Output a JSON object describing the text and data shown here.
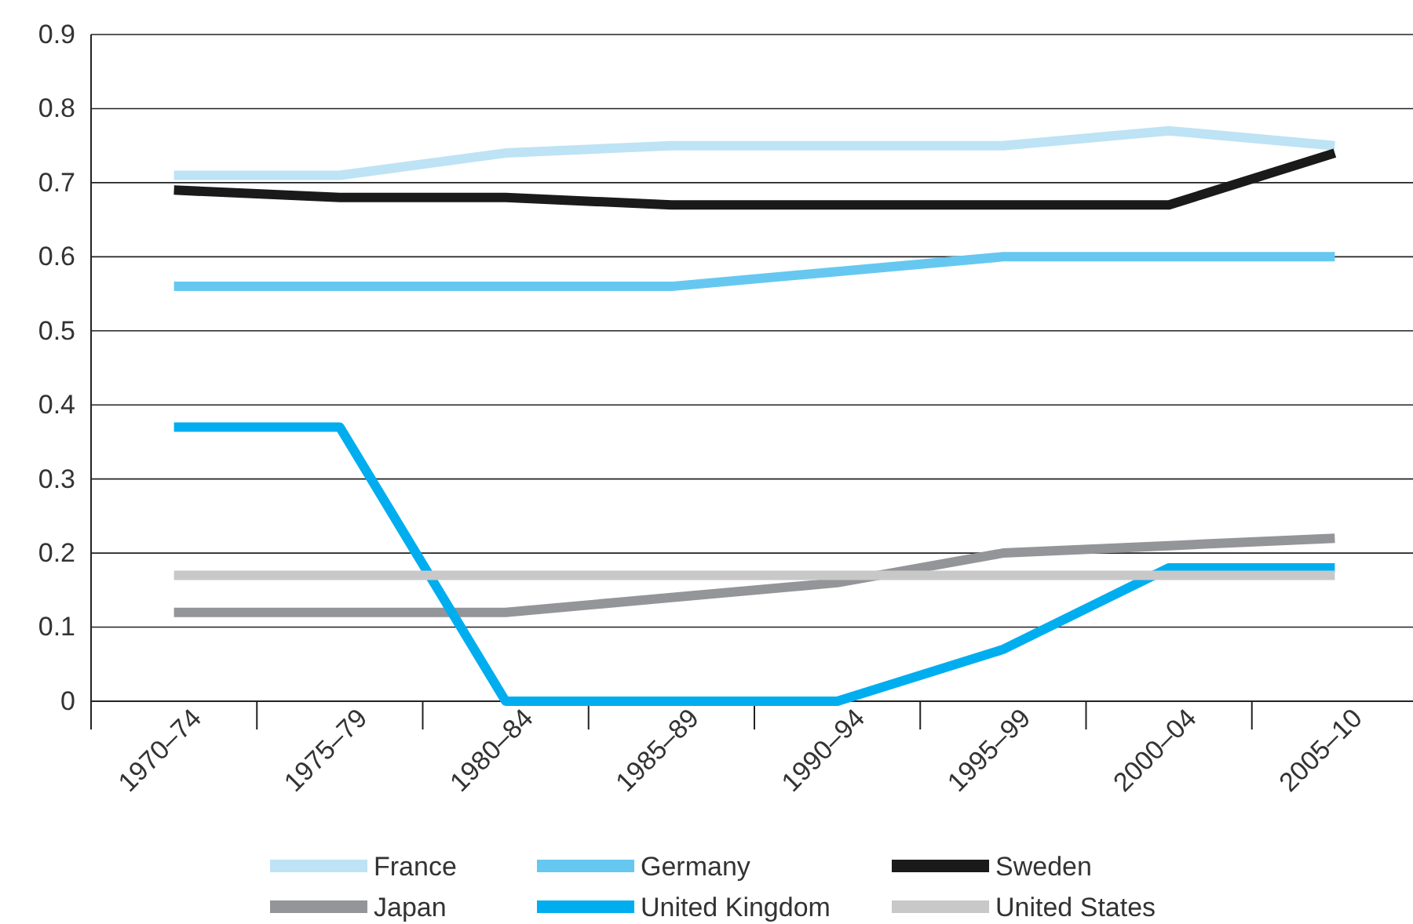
{
  "chart_data": {
    "type": "line",
    "categories": [
      "1970–74",
      "1975–79",
      "1980–84",
      "1985–89",
      "1990–94",
      "1995–99",
      "2000–04",
      "2005–10"
    ],
    "series": [
      {
        "name": "France",
        "color": "#bde3f5",
        "values": [
          0.71,
          0.71,
          0.74,
          0.75,
          0.75,
          0.75,
          0.77,
          0.75
        ]
      },
      {
        "name": "Germany",
        "color": "#66c8f0",
        "values": [
          0.56,
          0.56,
          0.56,
          0.56,
          0.58,
          0.6,
          0.6,
          0.6
        ]
      },
      {
        "name": "Sweden",
        "color": "#1a1a1a",
        "values": [
          0.69,
          0.68,
          0.68,
          0.67,
          0.67,
          0.67,
          0.67,
          0.74
        ]
      },
      {
        "name": "Japan",
        "color": "#939598",
        "values": [
          0.12,
          0.12,
          0.12,
          0.14,
          0.16,
          0.2,
          0.21,
          0.22
        ]
      },
      {
        "name": "United Kingdom",
        "color": "#00aeef",
        "values": [
          0.37,
          0.37,
          0,
          0,
          0,
          0.07,
          0.18,
          0.18
        ]
      },
      {
        "name": "United States",
        "color": "#c8c8c8",
        "values": [
          0.17,
          0.17,
          0.17,
          0.17,
          0.17,
          0.17,
          0.17,
          0.17
        ]
      }
    ],
    "ylim": [
      0,
      0.9
    ],
    "yticks": [
      0,
      0.1,
      0.2,
      0.3,
      0.4,
      0.5,
      0.6,
      0.7,
      0.8,
      0.9
    ],
    "grid": "y",
    "legend": "bottom",
    "marker": "none",
    "line_style": "solid"
  }
}
